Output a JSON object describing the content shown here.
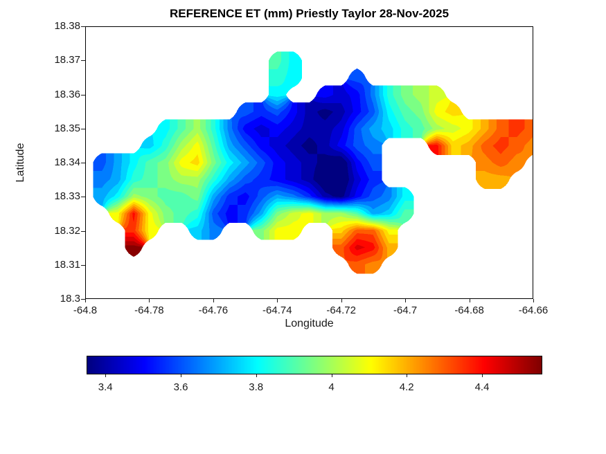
{
  "chart_data": {
    "type": "heatmap",
    "title": "REFERENCE ET (mm) Priestly Taylor 28-Nov-2025",
    "xlabel": "Longitude",
    "ylabel": "Latitude",
    "xlim": [
      -64.8,
      -64.66
    ],
    "ylim": [
      18.3,
      18.38
    ],
    "xtick_labels": [
      "-64.8",
      "-64.78",
      "-64.76",
      "-64.74",
      "-64.72",
      "-64.7",
      "-64.68",
      "-64.66"
    ],
    "ytick_labels": [
      "18.3",
      "18.31",
      "18.32",
      "18.33",
      "18.34",
      "18.35",
      "18.36",
      "18.37",
      "18.38"
    ],
    "grid_on": false,
    "legend": "none",
    "colorbar": {
      "orientation": "horizontal",
      "colormap": "jet",
      "tick_labels": [
        "3.4",
        "3.6",
        "3.8",
        "4",
        "4.2",
        "4.4"
      ],
      "vmin": 3.35,
      "vmax": 4.56
    },
    "grid": {
      "no_data_note": "null = outside island boundary (white sea area)",
      "lon": [
        -64.8,
        -64.795,
        -64.79,
        -64.785,
        -64.78,
        -64.775,
        -64.77,
        -64.765,
        -64.76,
        -64.755,
        -64.75,
        -64.745,
        -64.74,
        -64.735,
        -64.73,
        -64.725,
        -64.72,
        -64.715,
        -64.71,
        -64.705,
        -64.7,
        -64.695,
        -64.69,
        -64.685,
        -64.68,
        -64.675,
        -64.67,
        -64.665,
        -64.66
      ],
      "lat": [
        18.375,
        18.37,
        18.365,
        18.36,
        18.355,
        18.35,
        18.345,
        18.34,
        18.335,
        18.33,
        18.325,
        18.32,
        18.315,
        18.31,
        18.305,
        18.3
      ],
      "et_mm": [
        [
          null,
          null,
          null,
          null,
          null,
          null,
          null,
          null,
          null,
          null,
          null,
          null,
          null,
          null,
          null,
          null,
          null,
          null,
          null,
          null,
          null,
          null,
          null,
          null,
          null,
          null,
          null,
          null,
          null
        ],
        [
          null,
          null,
          null,
          null,
          null,
          null,
          null,
          null,
          null,
          null,
          null,
          null,
          3.9,
          3.8,
          null,
          null,
          null,
          null,
          null,
          null,
          null,
          null,
          null,
          null,
          null,
          null,
          null,
          null,
          null
        ],
        [
          null,
          null,
          null,
          null,
          null,
          null,
          null,
          null,
          null,
          null,
          null,
          null,
          3.85,
          3.8,
          null,
          null,
          null,
          3.6,
          null,
          null,
          null,
          null,
          null,
          null,
          null,
          null,
          null,
          null,
          null
        ],
        [
          null,
          null,
          null,
          null,
          null,
          null,
          null,
          null,
          null,
          null,
          null,
          null,
          3.8,
          null,
          null,
          3.5,
          3.45,
          3.5,
          3.65,
          3.85,
          3.95,
          4.0,
          4.05,
          null,
          null,
          null,
          null,
          null,
          null
        ],
        [
          null,
          null,
          null,
          null,
          null,
          null,
          null,
          null,
          null,
          null,
          3.6,
          3.55,
          3.6,
          3.5,
          3.4,
          3.35,
          3.4,
          3.5,
          3.6,
          3.8,
          3.9,
          3.95,
          4.1,
          4.15,
          null,
          null,
          null,
          null,
          null
        ],
        [
          null,
          null,
          null,
          null,
          null,
          3.8,
          3.9,
          4.0,
          3.85,
          3.65,
          3.5,
          3.45,
          3.5,
          3.45,
          3.4,
          3.4,
          3.45,
          3.6,
          3.7,
          3.75,
          3.85,
          3.9,
          4.0,
          4.05,
          4.1,
          4.2,
          4.3,
          4.35,
          4.3
        ],
        [
          null,
          null,
          null,
          null,
          3.75,
          3.85,
          4.0,
          4.1,
          3.9,
          3.7,
          3.6,
          3.5,
          3.45,
          3.4,
          3.35,
          3.4,
          3.5,
          3.6,
          3.65,
          null,
          null,
          null,
          4.4,
          4.15,
          4.2,
          4.3,
          4.35,
          4.3,
          4.25
        ],
        [
          null,
          3.6,
          3.7,
          3.8,
          3.9,
          3.95,
          4.1,
          4.15,
          3.95,
          3.8,
          3.7,
          3.6,
          3.5,
          3.45,
          3.4,
          3.35,
          3.3,
          3.5,
          3.6,
          null,
          null,
          null,
          null,
          null,
          null,
          4.25,
          4.3,
          4.25,
          null
        ],
        [
          null,
          3.65,
          3.7,
          3.85,
          3.9,
          3.95,
          4.0,
          4.0,
          3.85,
          3.7,
          3.6,
          3.55,
          3.5,
          3.45,
          3.4,
          3.3,
          3.3,
          3.45,
          3.55,
          null,
          null,
          null,
          null,
          null,
          null,
          4.2,
          4.2,
          null,
          null
        ],
        [
          null,
          3.7,
          3.8,
          4.0,
          3.95,
          3.9,
          3.9,
          3.95,
          3.7,
          3.55,
          3.5,
          3.6,
          3.7,
          3.65,
          3.55,
          3.4,
          3.35,
          3.5,
          3.6,
          3.65,
          3.8,
          null,
          null,
          null,
          null,
          null,
          null,
          null,
          null
        ],
        [
          null,
          null,
          4.1,
          4.4,
          4.1,
          3.95,
          3.9,
          3.85,
          3.6,
          3.5,
          3.55,
          3.7,
          3.95,
          4.05,
          4.1,
          4.0,
          4.0,
          3.9,
          3.7,
          3.75,
          3.9,
          null,
          null,
          null,
          null,
          null,
          null,
          null,
          null
        ],
        [
          null,
          null,
          null,
          4.35,
          4.1,
          null,
          null,
          3.75,
          3.65,
          null,
          null,
          3.95,
          4.1,
          4.1,
          null,
          null,
          4.15,
          4.3,
          4.3,
          4.1,
          null,
          null,
          null,
          null,
          null,
          null,
          null,
          null,
          null
        ],
        [
          null,
          null,
          null,
          4.55,
          null,
          null,
          null,
          null,
          null,
          null,
          null,
          null,
          null,
          null,
          null,
          null,
          4.3,
          4.45,
          4.4,
          4.2,
          null,
          null,
          null,
          null,
          null,
          null,
          null,
          null,
          null
        ],
        [
          null,
          null,
          null,
          null,
          null,
          null,
          null,
          null,
          null,
          null,
          null,
          null,
          null,
          null,
          null,
          null,
          null,
          4.3,
          4.25,
          null,
          null,
          null,
          null,
          null,
          null,
          null,
          null,
          null,
          null
        ],
        [
          null,
          null,
          null,
          null,
          null,
          null,
          null,
          null,
          null,
          null,
          null,
          null,
          null,
          null,
          null,
          null,
          null,
          null,
          null,
          null,
          null,
          null,
          null,
          null,
          null,
          null,
          null,
          null,
          null
        ],
        [
          null,
          null,
          null,
          null,
          null,
          null,
          null,
          null,
          null,
          null,
          null,
          null,
          null,
          null,
          null,
          null,
          null,
          null,
          null,
          null,
          null,
          null,
          null,
          null,
          null,
          null,
          null,
          null,
          null
        ]
      ]
    }
  }
}
